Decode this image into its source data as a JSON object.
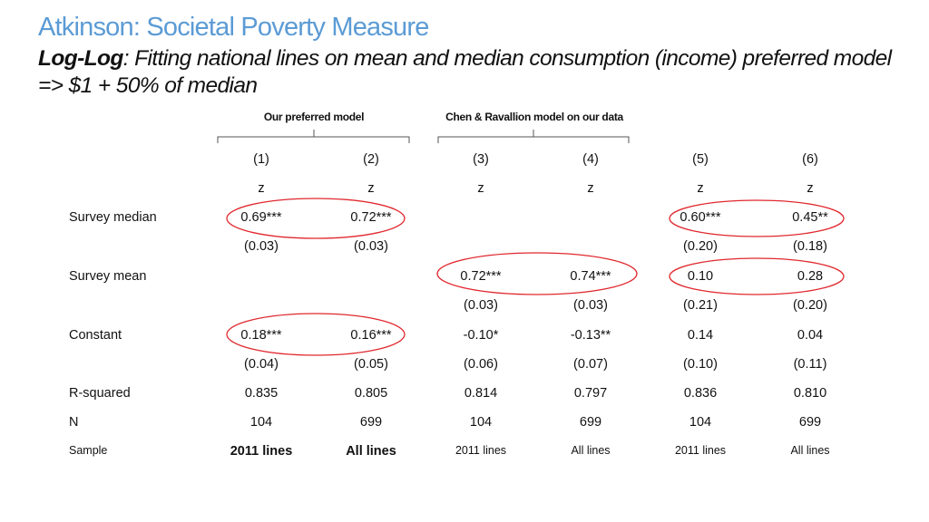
{
  "title": "Atkinson: Societal Poverty Measure",
  "subtitle": {
    "bold": "Log-Log",
    "rest": ": Fitting national lines on mean and median consumption (income) preferred model => $1 + 50% of median"
  },
  "groups": [
    "Our preferred model",
    "Chen & Ravallion model on our data"
  ],
  "columns": [
    "(1)",
    "(2)",
    "(3)",
    "(4)",
    "(5)",
    "(6)"
  ],
  "subheader": [
    "z",
    "z",
    "z",
    "z",
    "z",
    "z"
  ],
  "rows": [
    {
      "label": "Survey median",
      "values": [
        "0.69***",
        "0.72***",
        "",
        "",
        "0.60***",
        "0.45**"
      ]
    },
    {
      "label": "",
      "values": [
        "(0.03)",
        "(0.03)",
        "",
        "",
        "(0.20)",
        "(0.18)"
      ]
    },
    {
      "label": "Survey mean",
      "values": [
        "",
        "",
        "0.72***",
        "0.74***",
        "0.10",
        "0.28"
      ]
    },
    {
      "label": "",
      "values": [
        "",
        "",
        "(0.03)",
        "(0.03)",
        "(0.21)",
        "(0.20)"
      ]
    },
    {
      "label": "Constant",
      "values": [
        "0.18***",
        "0.16***",
        "-0.10*",
        "-0.13**",
        "0.14",
        "0.04"
      ]
    },
    {
      "label": "",
      "values": [
        "(0.04)",
        "(0.05)",
        "(0.06)",
        "(0.07)",
        "(0.10)",
        "(0.11)"
      ]
    },
    {
      "label": "R-squared",
      "values": [
        "0.835",
        "0.805",
        "0.814",
        "0.797",
        "0.836",
        "0.810"
      ]
    },
    {
      "label": "N",
      "values": [
        "104",
        "699",
        "104",
        "699",
        "104",
        "699"
      ]
    },
    {
      "label": "Sample",
      "values": [
        "2011 lines",
        "All lines",
        "2011 lines",
        "All lines",
        "2011 lines",
        "All lines"
      ]
    }
  ],
  "colors": {
    "title": "#5b9bd5",
    "highlight_ellipse": "#e0282e",
    "brace": "#555555"
  }
}
